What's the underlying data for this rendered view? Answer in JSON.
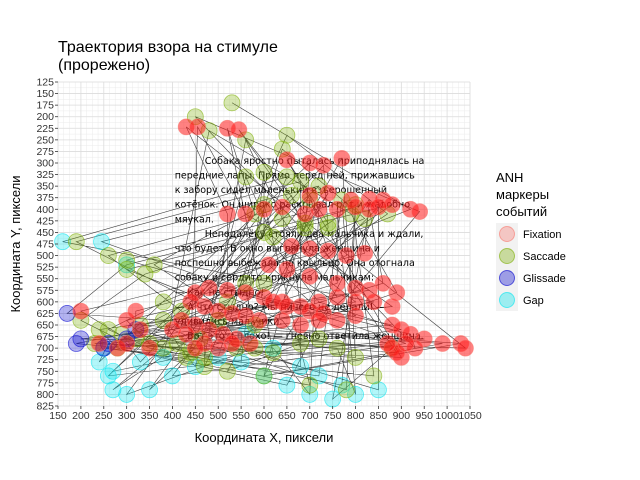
{
  "chart_data": {
    "type": "scatter",
    "title_lines": [
      "Траектория взора на стимуле",
      "(прорежено)"
    ],
    "xlabel": "Координата X, пиксели",
    "ylabel": "Координата Y, пиксели",
    "xlim": [
      150,
      1050
    ],
    "ylim": [
      125,
      825
    ],
    "y_reversed": true,
    "x_ticks": [
      150,
      200,
      250,
      300,
      350,
      400,
      450,
      500,
      550,
      600,
      650,
      700,
      750,
      800,
      850,
      900,
      950,
      1000,
      1050
    ],
    "y_ticks": [
      125,
      150,
      175,
      200,
      225,
      250,
      275,
      300,
      325,
      350,
      375,
      400,
      425,
      450,
      475,
      500,
      525,
      550,
      575,
      600,
      625,
      650,
      675,
      700,
      725,
      750,
      775,
      800,
      825
    ],
    "grid": true,
    "legend": {
      "title_lines": [
        "ANH",
        "маркеры",
        "событий"
      ],
      "position": "right",
      "entries": [
        {
          "name": "Fixation",
          "color": "#f8766d"
        },
        {
          "name": "Saccade",
          "color": "#7cae00"
        },
        {
          "name": "Glissade",
          "color": "#0000cd"
        },
        {
          "name": "Gap",
          "color": "#00e5ee"
        }
      ]
    },
    "background_text": [
      "Собака яростно пыталась приподнялась на",
      "передние лапы. Прямо перед ней, прижавшись",
      "к забору сидел маленький взъерошенный",
      "котёнок. Он широко раскрывал рот и жалобно",
      "мяукал.",
      "Неподалёку стояли два мальчика и ждали,",
      "что будет. В окно выглянула женщина и",
      "поспешно выбежала на крыльцо. Она отогнала",
      "собаку и сердито крикнула мальчикам:",
      "— Как не стыдно!",
      "— А что стыдно? Мы ничего не делали! —",
      "удивились мальчики.",
      "— Вот это и плохо! — гневно ответила женщина."
    ],
    "series": [
      {
        "name": "Fixation",
        "points": [
          [
            430,
            222
          ],
          [
            455,
            222
          ],
          [
            520,
            225
          ],
          [
            545,
            228
          ],
          [
            650,
            293
          ],
          [
            700,
            300
          ],
          [
            730,
            305
          ],
          [
            770,
            290
          ],
          [
            700,
            370
          ],
          [
            740,
            365
          ],
          [
            790,
            380
          ],
          [
            830,
            378
          ],
          [
            860,
            380
          ],
          [
            880,
            390
          ],
          [
            920,
            400
          ],
          [
            940,
            405
          ],
          [
            560,
            410
          ],
          [
            600,
            400
          ],
          [
            640,
            395
          ],
          [
            690,
            410
          ],
          [
            720,
            400
          ],
          [
            760,
            400
          ],
          [
            800,
            395
          ],
          [
            830,
            400
          ],
          [
            850,
            395
          ],
          [
            520,
            410
          ],
          [
            660,
            480
          ],
          [
            700,
            485
          ],
          [
            740,
            490
          ],
          [
            780,
            500
          ],
          [
            820,
            495
          ],
          [
            610,
            520
          ],
          [
            650,
            530
          ],
          [
            700,
            545
          ],
          [
            760,
            560
          ],
          [
            800,
            570
          ],
          [
            830,
            575
          ],
          [
            860,
            560
          ],
          [
            890,
            580
          ],
          [
            450,
            580
          ],
          [
            480,
            570
          ],
          [
            520,
            575
          ],
          [
            560,
            580
          ],
          [
            600,
            590
          ],
          [
            640,
            600
          ],
          [
            680,
            610
          ],
          [
            720,
            600
          ],
          [
            760,
            590
          ],
          [
            800,
            600
          ],
          [
            840,
            600
          ],
          [
            880,
            610
          ],
          [
            440,
            600
          ],
          [
            470,
            610
          ],
          [
            500,
            620
          ],
          [
            530,
            625
          ],
          [
            560,
            630
          ],
          [
            590,
            640
          ],
          [
            620,
            600
          ],
          [
            650,
            610
          ],
          [
            700,
            620
          ],
          [
            730,
            625
          ],
          [
            420,
            640
          ],
          [
            450,
            650
          ],
          [
            480,
            660
          ],
          [
            510,
            670
          ],
          [
            540,
            680
          ],
          [
            570,
            690
          ],
          [
            400,
            660
          ],
          [
            430,
            670
          ],
          [
            470,
            690
          ],
          [
            500,
            700
          ],
          [
            530,
            690
          ],
          [
            880,
            650
          ],
          [
            900,
            660
          ],
          [
            920,
            670
          ],
          [
            950,
            680
          ],
          [
            990,
            690
          ],
          [
            1030,
            690
          ],
          [
            1040,
            700
          ],
          [
            900,
            720
          ],
          [
            930,
            700
          ],
          [
            880,
            700
          ],
          [
            640,
            640
          ],
          [
            680,
            650
          ],
          [
            720,
            640
          ],
          [
            760,
            640
          ],
          [
            800,
            630
          ],
          [
            450,
            700
          ],
          [
            350,
            700
          ],
          [
            330,
            660
          ],
          [
            300,
            640
          ],
          [
            320,
            620
          ],
          [
            200,
            620
          ],
          [
            890,
            710
          ],
          [
            280,
            700
          ],
          [
            300,
            690
          ],
          [
            240,
            690
          ],
          [
            870,
            690
          ],
          [
            910,
            690
          ]
        ]
      },
      {
        "name": "Saccade",
        "points": [
          [
            530,
            170
          ],
          [
            450,
            200
          ],
          [
            480,
            230
          ],
          [
            560,
            250
          ],
          [
            600,
            320
          ],
          [
            650,
            330
          ],
          [
            680,
            340
          ],
          [
            720,
            350
          ],
          [
            770,
            380
          ],
          [
            800,
            390
          ],
          [
            600,
            390
          ],
          [
            640,
            420
          ],
          [
            600,
            450
          ],
          [
            620,
            460
          ],
          [
            690,
            440
          ],
          [
            740,
            430
          ],
          [
            820,
            420
          ],
          [
            360,
            520
          ],
          [
            300,
            510
          ],
          [
            190,
            470
          ],
          [
            260,
            500
          ],
          [
            300,
            530
          ],
          [
            340,
            540
          ],
          [
            380,
            600
          ],
          [
            420,
            620
          ],
          [
            380,
            640
          ],
          [
            330,
            650
          ],
          [
            260,
            660
          ],
          [
            290,
            670
          ],
          [
            320,
            680
          ],
          [
            350,
            690
          ],
          [
            380,
            700
          ],
          [
            410,
            690
          ],
          [
            440,
            710
          ],
          [
            470,
            720
          ],
          [
            540,
            700
          ],
          [
            580,
            700
          ],
          [
            620,
            710
          ],
          [
            680,
            690
          ],
          [
            720,
            680
          ],
          [
            760,
            700
          ],
          [
            800,
            720
          ],
          [
            840,
            760
          ],
          [
            880,
            700
          ],
          [
            600,
            560
          ],
          [
            560,
            560
          ],
          [
            520,
            600
          ],
          [
            500,
            640
          ],
          [
            460,
            680
          ],
          [
            430,
            720
          ],
          [
            470,
            740
          ],
          [
            520,
            750
          ],
          [
            600,
            760
          ],
          [
            700,
            780
          ],
          [
            780,
            790
          ],
          [
            660,
            370
          ],
          [
            700,
            380
          ],
          [
            740,
            440
          ],
          [
            790,
            410
          ],
          [
            870,
            410
          ],
          [
            280,
            700
          ],
          [
            230,
            690
          ],
          [
            200,
            640
          ],
          [
            640,
            270
          ],
          [
            650,
            240
          ],
          [
            690,
            430
          ],
          [
            560,
            330
          ],
          [
            580,
            410
          ],
          [
            240,
            660
          ],
          [
            580,
            650
          ]
        ]
      },
      {
        "name": "Glissade",
        "points": [
          [
            170,
            625
          ],
          [
            190,
            690
          ],
          [
            250,
            700
          ],
          [
            300,
            680
          ],
          [
            320,
            660
          ],
          [
            260,
            690
          ],
          [
            200,
            680
          ]
        ]
      },
      {
        "name": "Gap",
        "points": [
          [
            160,
            470
          ],
          [
            245,
            470
          ],
          [
            300,
            520
          ],
          [
            250,
            700
          ],
          [
            260,
            760
          ],
          [
            270,
            790
          ],
          [
            300,
            800
          ],
          [
            350,
            790
          ],
          [
            400,
            760
          ],
          [
            450,
            740
          ],
          [
            500,
            720
          ],
          [
            550,
            730
          ],
          [
            600,
            760
          ],
          [
            650,
            780
          ],
          [
            700,
            800
          ],
          [
            750,
            810
          ],
          [
            800,
            800
          ],
          [
            850,
            790
          ],
          [
            560,
            670
          ],
          [
            620,
            700
          ],
          [
            680,
            740
          ],
          [
            720,
            760
          ],
          [
            770,
            780
          ],
          [
            240,
            730
          ],
          [
            270,
            750
          ],
          [
            330,
            730
          ],
          [
            380,
            720
          ]
        ]
      }
    ],
    "trajectory_note": "Black lines connect consecutive gaze samples"
  }
}
